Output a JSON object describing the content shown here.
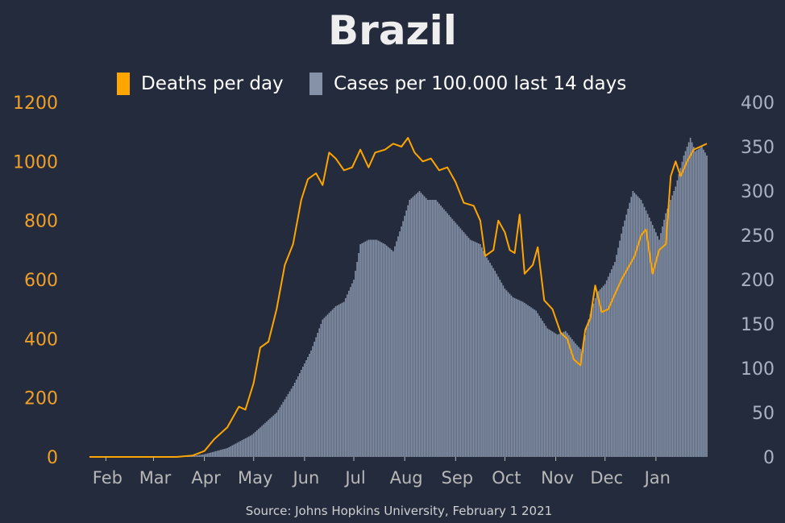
{
  "colors": {
    "background": "#232b3c",
    "deaths": "#ffa500",
    "cases": "#8592a8",
    "title": "#eeeeee",
    "legend_text": "#ffffff",
    "left_axis": "#f0a028",
    "right_axis": "#aab2c4",
    "month_labels": "#b8b8b8",
    "source": "#d0d0d0"
  },
  "chart_data": {
    "type": "bar+line",
    "title": "Brazil",
    "source": "Source: Johns Hopkins University, February 1 2021",
    "legend": [
      "Deaths per day",
      "Cases per 100.000 last 14 days"
    ],
    "legend_placement": "top",
    "grid": false,
    "x_start": "2020-01-22",
    "x_end": "2021-02-01",
    "x_ticks": [
      {
        "date": "2020-02-01",
        "label": "Feb"
      },
      {
        "date": "2020-03-01",
        "label": "Mar"
      },
      {
        "date": "2020-04-01",
        "label": "Apr"
      },
      {
        "date": "2020-05-01",
        "label": "May"
      },
      {
        "date": "2020-06-01",
        "label": "Jun"
      },
      {
        "date": "2020-07-01",
        "label": "Jul"
      },
      {
        "date": "2020-08-01",
        "label": "Aug"
      },
      {
        "date": "2020-09-01",
        "label": "Sep"
      },
      {
        "date": "2020-10-01",
        "label": "Oct"
      },
      {
        "date": "2020-11-01",
        "label": "Nov"
      },
      {
        "date": "2020-12-01",
        "label": "Dec"
      },
      {
        "date": "2021-01-01",
        "label": "Jan"
      }
    ],
    "y_left": {
      "label": "Deaths per day",
      "range": [
        0,
        1200
      ],
      "ticks": [
        0,
        200,
        400,
        600,
        800,
        1000,
        1200
      ]
    },
    "y_right": {
      "label": "Cases per 100.000 last 14 days",
      "range": [
        0,
        400
      ],
      "ticks": [
        0,
        50,
        100,
        150,
        200,
        250,
        300,
        350,
        400
      ]
    },
    "series": [
      {
        "name": "Deaths per day",
        "type": "line",
        "axis": "left",
        "points": [
          [
            "2020-01-22",
            0
          ],
          [
            "2020-03-15",
            0
          ],
          [
            "2020-03-25",
            5
          ],
          [
            "2020-04-01",
            20
          ],
          [
            "2020-04-07",
            60
          ],
          [
            "2020-04-15",
            100
          ],
          [
            "2020-04-22",
            170
          ],
          [
            "2020-04-26",
            160
          ],
          [
            "2020-05-01",
            250
          ],
          [
            "2020-05-05",
            370
          ],
          [
            "2020-05-10",
            390
          ],
          [
            "2020-05-15",
            500
          ],
          [
            "2020-05-20",
            650
          ],
          [
            "2020-05-25",
            720
          ],
          [
            "2020-05-30",
            870
          ],
          [
            "2020-06-03",
            940
          ],
          [
            "2020-06-08",
            960
          ],
          [
            "2020-06-12",
            920
          ],
          [
            "2020-06-16",
            1030
          ],
          [
            "2020-06-20",
            1010
          ],
          [
            "2020-06-25",
            970
          ],
          [
            "2020-06-30",
            980
          ],
          [
            "2020-07-05",
            1040
          ],
          [
            "2020-07-10",
            980
          ],
          [
            "2020-07-14",
            1030
          ],
          [
            "2020-07-20",
            1040
          ],
          [
            "2020-07-25",
            1060
          ],
          [
            "2020-07-30",
            1050
          ],
          [
            "2020-08-03",
            1080
          ],
          [
            "2020-08-07",
            1030
          ],
          [
            "2020-08-12",
            1000
          ],
          [
            "2020-08-17",
            1010
          ],
          [
            "2020-08-22",
            970
          ],
          [
            "2020-08-27",
            980
          ],
          [
            "2020-09-01",
            930
          ],
          [
            "2020-09-06",
            860
          ],
          [
            "2020-09-12",
            850
          ],
          [
            "2020-09-16",
            800
          ],
          [
            "2020-09-19",
            680
          ],
          [
            "2020-09-24",
            700
          ],
          [
            "2020-09-27",
            800
          ],
          [
            "2020-10-01",
            760
          ],
          [
            "2020-10-04",
            700
          ],
          [
            "2020-10-07",
            690
          ],
          [
            "2020-10-10",
            820
          ],
          [
            "2020-10-13",
            620
          ],
          [
            "2020-10-18",
            650
          ],
          [
            "2020-10-21",
            710
          ],
          [
            "2020-10-25",
            530
          ],
          [
            "2020-10-30",
            500
          ],
          [
            "2020-11-04",
            420
          ],
          [
            "2020-11-08",
            400
          ],
          [
            "2020-11-12",
            330
          ],
          [
            "2020-11-16",
            310
          ],
          [
            "2020-11-19",
            430
          ],
          [
            "2020-11-22",
            470
          ],
          [
            "2020-11-25",
            580
          ],
          [
            "2020-11-29",
            490
          ],
          [
            "2020-12-03",
            500
          ],
          [
            "2020-12-07",
            550
          ],
          [
            "2020-12-11",
            600
          ],
          [
            "2020-12-15",
            640
          ],
          [
            "2020-12-19",
            680
          ],
          [
            "2020-12-23",
            750
          ],
          [
            "2020-12-26",
            770
          ],
          [
            "2020-12-30",
            620
          ],
          [
            "2021-01-03",
            700
          ],
          [
            "2021-01-07",
            720
          ],
          [
            "2021-01-10",
            950
          ],
          [
            "2021-01-13",
            1000
          ],
          [
            "2021-01-16",
            950
          ],
          [
            "2021-01-20",
            1000
          ],
          [
            "2021-01-24",
            1040
          ],
          [
            "2021-01-28",
            1050
          ],
          [
            "2021-02-01",
            1060
          ]
        ]
      },
      {
        "name": "Cases per 100.000 last 14 days",
        "type": "bar",
        "axis": "right",
        "points": [
          [
            "2020-01-22",
            0
          ],
          [
            "2020-03-20",
            0
          ],
          [
            "2020-04-01",
            3
          ],
          [
            "2020-04-15",
            10
          ],
          [
            "2020-04-30",
            25
          ],
          [
            "2020-05-15",
            50
          ],
          [
            "2020-05-25",
            80
          ],
          [
            "2020-06-05",
            120
          ],
          [
            "2020-06-12",
            155
          ],
          [
            "2020-06-20",
            170
          ],
          [
            "2020-06-25",
            175
          ],
          [
            "2020-07-01",
            200
          ],
          [
            "2020-07-05",
            240
          ],
          [
            "2020-07-10",
            245
          ],
          [
            "2020-07-15",
            245
          ],
          [
            "2020-07-20",
            240
          ],
          [
            "2020-07-25",
            232
          ],
          [
            "2020-07-30",
            260
          ],
          [
            "2020-08-04",
            290
          ],
          [
            "2020-08-10",
            300
          ],
          [
            "2020-08-15",
            290
          ],
          [
            "2020-08-20",
            290
          ],
          [
            "2020-08-27",
            275
          ],
          [
            "2020-09-03",
            260
          ],
          [
            "2020-09-10",
            245
          ],
          [
            "2020-09-16",
            240
          ],
          [
            "2020-09-20",
            225
          ],
          [
            "2020-09-25",
            210
          ],
          [
            "2020-10-01",
            190
          ],
          [
            "2020-10-06",
            180
          ],
          [
            "2020-10-12",
            175
          ],
          [
            "2020-10-20",
            165
          ],
          [
            "2020-10-27",
            145
          ],
          [
            "2020-11-02",
            138
          ],
          [
            "2020-11-07",
            142
          ],
          [
            "2020-11-13",
            128
          ],
          [
            "2020-11-17",
            120
          ],
          [
            "2020-11-21",
            155
          ],
          [
            "2020-11-26",
            185
          ],
          [
            "2020-12-01",
            195
          ],
          [
            "2020-12-07",
            220
          ],
          [
            "2020-12-12",
            260
          ],
          [
            "2020-12-18",
            300
          ],
          [
            "2020-12-23",
            290
          ],
          [
            "2020-12-28",
            270
          ],
          [
            "2021-01-03",
            245
          ],
          [
            "2021-01-07",
            275
          ],
          [
            "2021-01-13",
            305
          ],
          [
            "2021-01-18",
            340
          ],
          [
            "2021-01-22",
            360
          ],
          [
            "2021-01-25",
            345
          ],
          [
            "2021-01-29",
            350
          ],
          [
            "2021-02-01",
            340
          ]
        ]
      }
    ]
  }
}
